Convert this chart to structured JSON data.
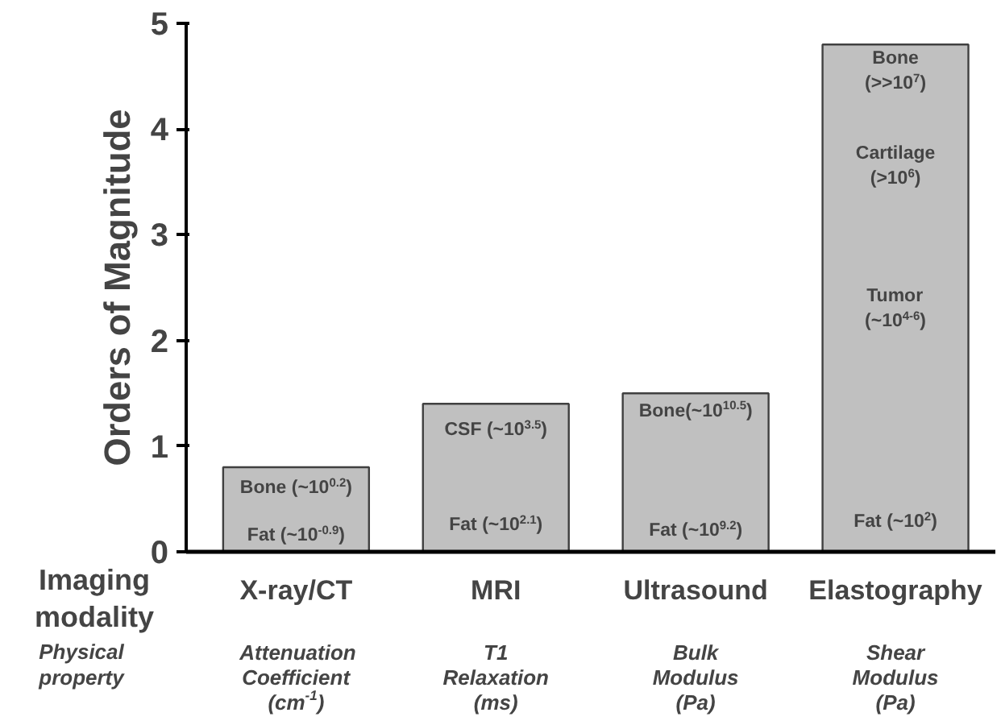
{
  "chart_data": {
    "type": "bar",
    "categories": [
      "X-ray/CT",
      "MRI",
      "Ultrasound",
      "Elastography"
    ],
    "values": [
      0.8,
      1.4,
      1.5,
      4.8
    ],
    "color": "#c0c0c0",
    "ylabel": "Orders of Magnitude",
    "xlabel": "Imaging\nmodality",
    "ylim": [
      0,
      5
    ],
    "yticks": [
      0,
      1,
      2,
      3,
      4,
      5
    ],
    "grid": false,
    "annotations": [
      "Bone (~10$^{0.2}$)",
      "Fat (~10$^{-0.9}$)",
      "CSF (~10$^{3.5}$)",
      "Fat (~10$^{2.1}$)",
      "Bone(~10$^{10.5}$)",
      "Fat (~10$^{9.2}$)",
      "Bone\n(>>10$^{7}$)",
      "Cartilage\n(>10$^{6}$)",
      "Tumor\n(~10$^{4-6}$)",
      "Fat (~10$^{2}$)",
      "Physical\nproperty",
      "Attenuation\nCoefficient\n(cm$^{-1}$)",
      "T1\nRelaxation\n(ms)",
      "Bulk\nModulus\n(Pa)",
      "Shear\nModulus\n(Pa)"
    ]
  }
}
